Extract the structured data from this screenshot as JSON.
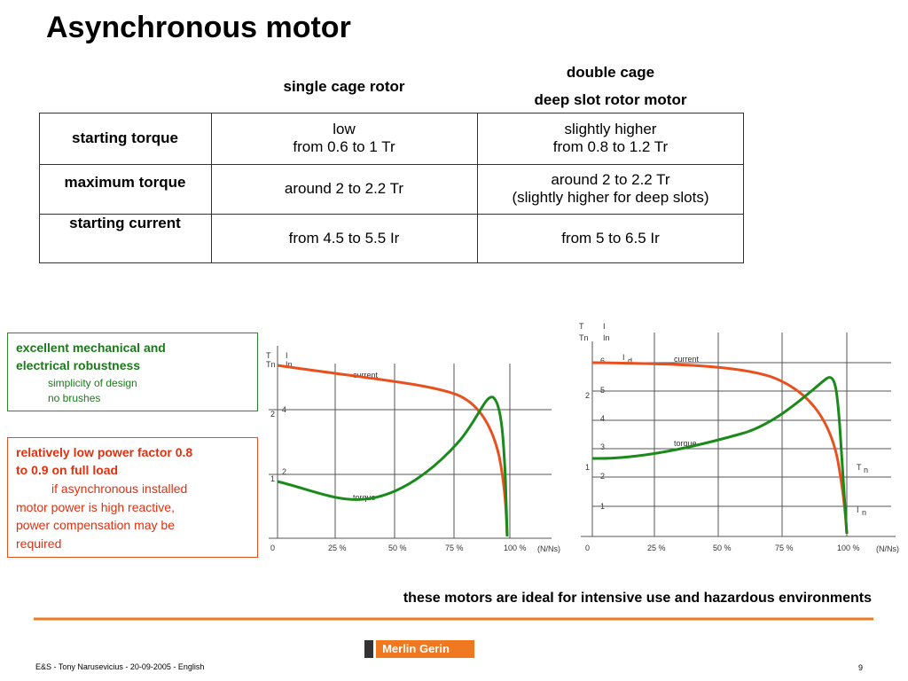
{
  "header": {
    "title": "Asynchronous motor"
  },
  "table": {
    "columns": [
      [
        "single cage rotor"
      ],
      [
        "double cage",
        "deep slot rotor motor"
      ]
    ],
    "rows": [
      {
        "label": "starting torque",
        "cells": [
          [
            "low",
            "from 0.6 to 1 Tr"
          ],
          [
            "slightly higher",
            "from 0.8 to 1.2 Tr"
          ]
        ]
      },
      {
        "label": "maximum torque",
        "cells": [
          [
            "around 2 to 2.2 Tr"
          ],
          [
            "around 2 to 2.2 Tr",
            "(slightly higher for deep slots)"
          ]
        ]
      },
      {
        "label": "starting current",
        "cells": [
          [
            "from 4.5 to 5.5 Ir"
          ],
          [
            "from 5 to 6.5 Ir"
          ]
        ]
      }
    ]
  },
  "boxes": [
    {
      "title": [
        "excellent mechanical and",
        "electrical robustness"
      ],
      "items": [
        "simplicity of design",
        "no brushes"
      ]
    },
    {
      "title": [
        "relatively low power factor 0.8",
        "to 0.9 on full load"
      ],
      "text": [
        "if asynchronous installed",
        "motor power is high reactive,",
        "power compensation may be",
        "required"
      ]
    }
  ],
  "diagrams": [
    {
      "labels": [
        "T",
        "Tn",
        "I",
        "In",
        "2",
        "1",
        "4",
        "2",
        "current",
        "torque",
        "0",
        "25 %",
        "50 %",
        "75 %",
        "100 %",
        "(N/Ns)"
      ]
    },
    {
      "labels": [
        "T",
        "Tn",
        "I",
        "In",
        "2",
        "1",
        "6",
        "5",
        "4",
        "3",
        "2",
        "1",
        "I",
        "d",
        "current",
        "torque",
        "T",
        "n",
        "I",
        "n",
        "0",
        "25 %",
        "50 %",
        "75 %",
        "100 %",
        "(N/Ns)"
      ]
    }
  ],
  "footer": {
    "tagline": "these motors are ideal for intensive use and hazardous environments",
    "logo": "Merlin Gerin",
    "credit": "E&S - Tony Narusevicius - 20-09-2005 - English",
    "page": "9"
  }
}
